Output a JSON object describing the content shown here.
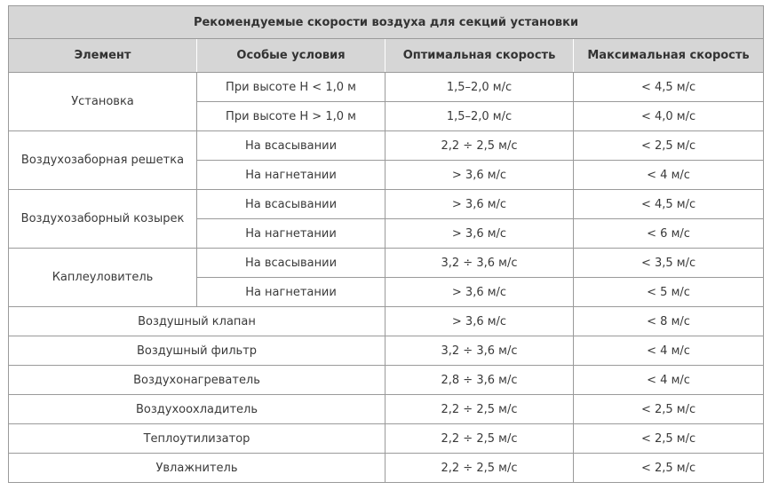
{
  "title": "Рекомендуемые скорости воздуха для секций установки",
  "headers": [
    "Элемент",
    "Особые условия",
    "Оптимальная скорость",
    "Максимальная скорость"
  ],
  "groups": [
    {
      "element": "Установка",
      "rows": [
        {
          "condition": "При высоте H < 1,0 м",
          "optimal": "1,5–2,0 м/с",
          "max": "< 4,5 м/с"
        },
        {
          "condition": "При высоте H > 1,0 м",
          "optimal": "1,5–2,0 м/с",
          "max": "< 4,0 м/с"
        }
      ]
    },
    {
      "element": "Воздухозаборная решетка",
      "rows": [
        {
          "condition": "На всасывании",
          "optimal": "2,2 ÷ 2,5 м/с",
          "max": "< 2,5 м/с"
        },
        {
          "condition": "На нагнетании",
          "optimal": "> 3,6 м/с",
          "max": "< 4 м/с"
        }
      ]
    },
    {
      "element": "Воздухозаборный козырек",
      "rows": [
        {
          "condition": "На всасывании",
          "optimal": "> 3,6 м/с",
          "max": "< 4,5 м/с"
        },
        {
          "condition": "На нагнетании",
          "optimal": "> 3,6 м/с",
          "max": "< 6 м/с"
        }
      ]
    },
    {
      "element": "Каплеуловитель",
      "rows": [
        {
          "condition": "На всасывании",
          "optimal": "3,2 ÷ 3,6 м/с",
          "max": "< 3,5 м/с"
        },
        {
          "condition": "На нагнетании",
          "optimal": "> 3,6 м/с",
          "max": "< 5 м/с"
        }
      ]
    }
  ],
  "simple_rows": [
    {
      "element": "Воздушный клапан",
      "optimal": "> 3,6 м/с",
      "max": "< 8 м/с"
    },
    {
      "element": "Воздушный фильтр",
      "optimal": "3,2 ÷ 3,6 м/с",
      "max": "< 4 м/с"
    },
    {
      "element": "Воздухонагреватель",
      "optimal": "2,8 ÷ 3,6 м/с",
      "max": "< 4 м/с"
    },
    {
      "element": "Воздухоохладитель",
      "optimal": "2,2 ÷ 2,5 м/с",
      "max": "< 2,5 м/с"
    },
    {
      "element": "Теплоутилизатор",
      "optimal": "2,2 ÷ 2,5 м/с",
      "max": "< 2,5 м/с"
    },
    {
      "element": "Увлажнитель",
      "optimal": "2,2 ÷ 2,5 м/с",
      "max": "< 2,5 м/с"
    }
  ]
}
